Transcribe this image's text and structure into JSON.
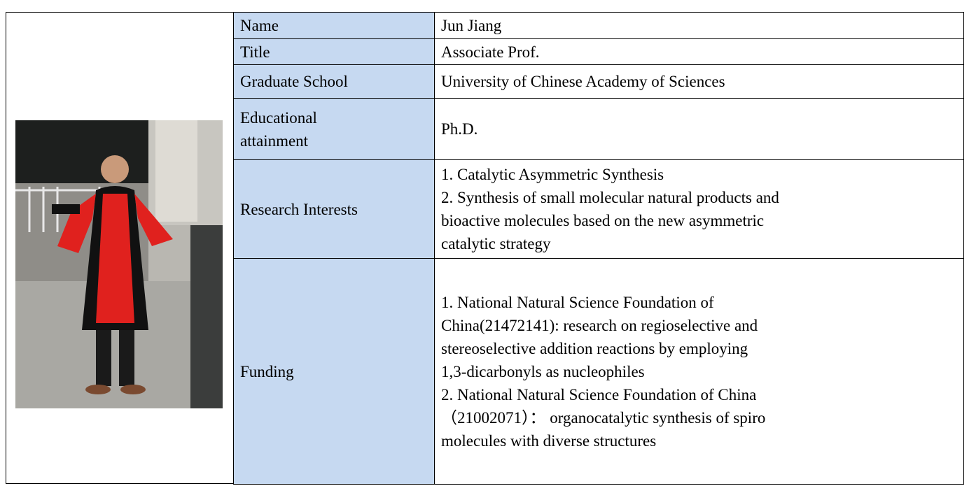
{
  "profile": {
    "rows": [
      {
        "label": [
          "Name"
        ],
        "value": [
          "Jun Jiang"
        ]
      },
      {
        "label": [
          "Title"
        ],
        "value": [
          "Associate Prof."
        ]
      },
      {
        "label": [
          "Graduate School"
        ],
        "value": [
          "University of Chinese Academy of Sciences"
        ]
      },
      {
        "label": [
          "Educational",
          "attainment"
        ],
        "value": [
          "Ph.D."
        ]
      },
      {
        "label": [
          "Research Interests"
        ],
        "value": [
          "1. Catalytic Asymmetric Synthesis",
          "2. Synthesis of small molecular natural products and",
          "bioactive molecules based on the new asymmetric",
          "catalytic strategy"
        ]
      },
      {
        "label": [
          "Funding"
        ],
        "value": [
          "1. National Natural Science Foundation of",
          "China(21472141): research on regioselective and",
          "stereoselective addition reactions by employing",
          "1,3-dicarbonyls as nucleophiles",
          "2. National Natural Science Foundation of China",
          "（21002071）： organocatalytic synthesis of spiro",
          "molecules with diverse structures"
        ]
      }
    ]
  }
}
